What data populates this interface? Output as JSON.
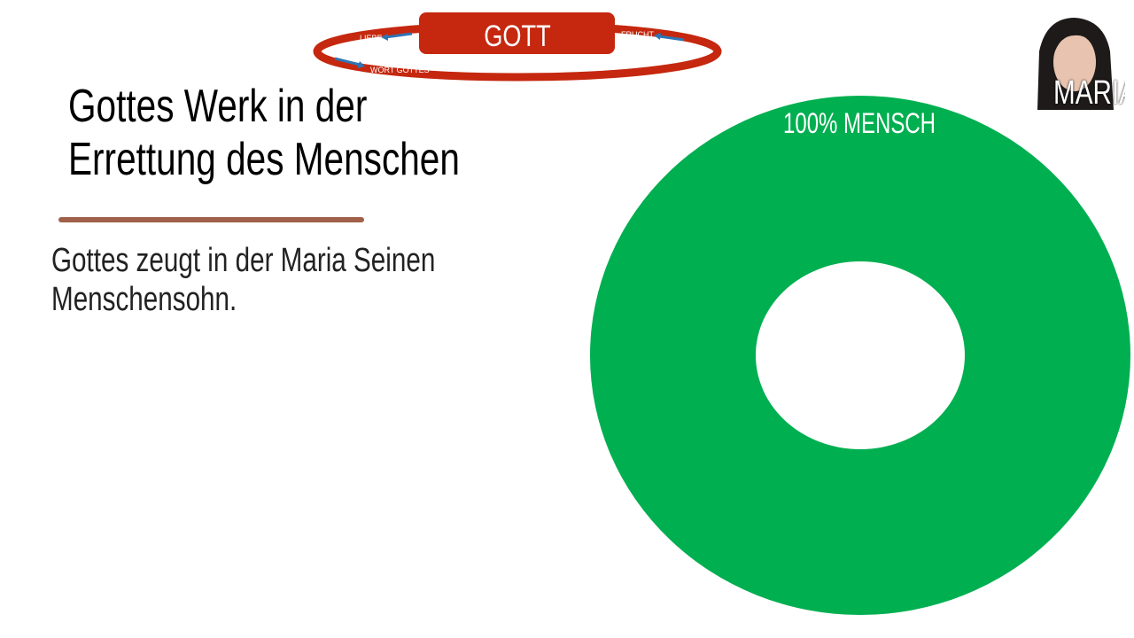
{
  "header_diagram": {
    "center_label": "GOTT",
    "left_label": "LIEBE",
    "right_label": "FRUCHT",
    "bottom_label": "WORT GOTTES",
    "ring_color": "#C5280F",
    "arrow_color": "#2E75B6"
  },
  "slide": {
    "title_line1": "Gottes Werk in der",
    "title_line2": "Errettung des Menschen",
    "body_line1": "Gottes zeugt in der Maria Seinen",
    "body_line2": "Menschensohn."
  },
  "portrait": {
    "label": "MARIA"
  },
  "donut": {
    "label": "100% MENSCH",
    "percent": 100,
    "color": "#00AF50"
  }
}
